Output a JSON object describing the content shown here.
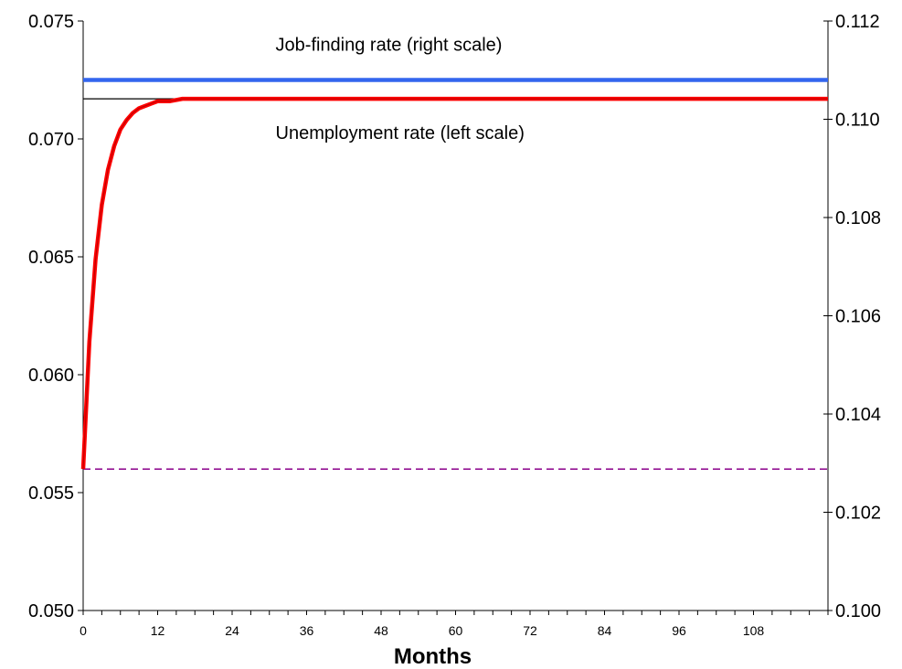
{
  "chart_data": {
    "type": "line",
    "title": "",
    "xlabel": "Months",
    "x_range": [
      0,
      120
    ],
    "x_ticks": [
      0,
      12,
      24,
      36,
      48,
      60,
      72,
      84,
      96,
      108
    ],
    "x_tick_labels": [
      "0",
      "12",
      "24",
      "36",
      "48",
      "60",
      "72",
      "84",
      "96",
      "108"
    ],
    "y_left": {
      "range": [
        0.05,
        0.075
      ],
      "ticks": [
        0.05,
        0.055,
        0.06,
        0.065,
        0.07,
        0.075
      ],
      "tick_labels": [
        "0.050",
        "0.055",
        "0.060",
        "0.065",
        "0.070",
        "0.075"
      ]
    },
    "y_right": {
      "range": [
        0.1,
        0.112
      ],
      "ticks": [
        0.1,
        0.102,
        0.104,
        0.106,
        0.108,
        0.11,
        0.112
      ],
      "tick_labels": [
        "0.100",
        "0.102",
        "0.104",
        "0.106",
        "0.108",
        "0.110",
        "0.112"
      ]
    },
    "grid": false,
    "series": [
      {
        "name": "Unemployment rate (left scale)",
        "axis": "left",
        "color": "#ff0000",
        "style": "solid-thick",
        "x": [
          0,
          1,
          2,
          3,
          4,
          5,
          6,
          7,
          8,
          9,
          10,
          11,
          12,
          14,
          16,
          18,
          24,
          36,
          48,
          60,
          72,
          84,
          96,
          108,
          120
        ],
        "values": [
          0.056,
          0.0614,
          0.0649,
          0.0672,
          0.0687,
          0.0697,
          0.0704,
          0.0708,
          0.0711,
          0.0713,
          0.0714,
          0.0715,
          0.0716,
          0.0716,
          0.0717,
          0.0717,
          0.0717,
          0.0717,
          0.0717,
          0.0717,
          0.0717,
          0.0717,
          0.0717,
          0.0717,
          0.0717
        ]
      },
      {
        "name": "Job-finding rate (right scale)",
        "axis": "right",
        "color": "#3366ee",
        "style": "solid-thick",
        "x": [
          0,
          120
        ],
        "values": [
          0.1108,
          0.1108
        ]
      },
      {
        "name": "",
        "axis": "left",
        "color": "#000000",
        "style": "solid-thin",
        "x": [
          0,
          120
        ],
        "values": [
          0.0717,
          0.0717
        ]
      },
      {
        "name": "",
        "axis": "left",
        "color": "#8b008b",
        "style": "dashed",
        "x": [
          0,
          120
        ],
        "values": [
          0.056,
          0.056
        ]
      }
    ],
    "annotations": [
      {
        "text": "Job-finding rate (right scale)",
        "x": 31,
        "axis": "right",
        "y": 0.1114
      },
      {
        "text": "Unemployment rate (left scale)",
        "x": 31,
        "axis": "left",
        "y": 0.07
      }
    ]
  }
}
